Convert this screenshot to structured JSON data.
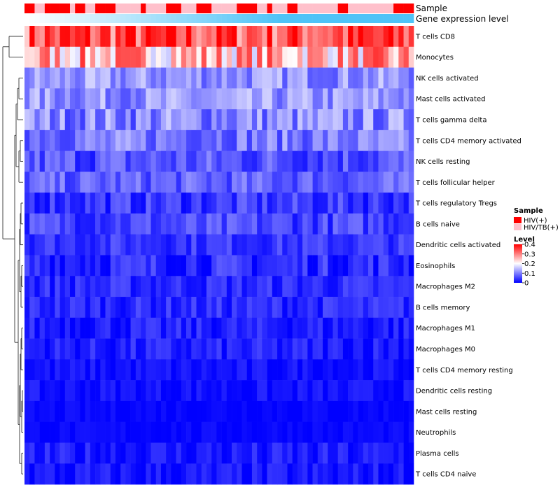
{
  "chart_data": {
    "type": "heatmap",
    "annotation_rows": [
      "Sample",
      "Gene expression level"
    ],
    "rows": [
      "T cells CD8",
      "Monocytes",
      "NK cells activated",
      "Mast cells activated",
      "T cells gamma delta",
      "T cells CD4 memory activated",
      "NK cells resting",
      "T cells follicular helper",
      "T cells regulatory  Tregs",
      "B cells naive",
      "Dendritic cells activated",
      "Eosinophils",
      "Macrophages M2",
      "B cells memory",
      "Macrophages M1",
      "Macrophages M0",
      "T cells CD4 memory resting",
      "Dendritic cells resting",
      "Mast cells resting",
      "Neutrophils",
      "Plasma cells",
      "T cells CD4 naive"
    ],
    "sample_groups": [
      1,
      1,
      0,
      0,
      1,
      1,
      1,
      1,
      1,
      0,
      1,
      1,
      0,
      0,
      1,
      1,
      1,
      1,
      0,
      0,
      0,
      0,
      0,
      1,
      0,
      0,
      0,
      0,
      1,
      1,
      1,
      0,
      0,
      0,
      1,
      1,
      1,
      0,
      0,
      0,
      0,
      0,
      1,
      1,
      1,
      1,
      0,
      0,
      1,
      0,
      0,
      0,
      1,
      1,
      0,
      0,
      0,
      0,
      0,
      0,
      0,
      0,
      1,
      1,
      0,
      0,
      0,
      0,
      0,
      0,
      0,
      0,
      0,
      1,
      1,
      1,
      1
    ],
    "expression_level": [
      0.0,
      0.02,
      0.04,
      0.06,
      0.08,
      0.1,
      0.12,
      0.14,
      0.16,
      0.18,
      0.2,
      0.22,
      0.24,
      0.26,
      0.28,
      0.3,
      0.32,
      0.34,
      0.36,
      0.38,
      0.4,
      0.42,
      0.44,
      0.46,
      0.48,
      0.5,
      0.52,
      0.54,
      0.56,
      0.58,
      0.6,
      0.62,
      0.64,
      0.66,
      0.68,
      0.7,
      0.72,
      0.74,
      0.76,
      0.78,
      0.8,
      0.82,
      0.84,
      0.86,
      0.88,
      0.9,
      0.92,
      0.94,
      0.96,
      0.98,
      1.0,
      1.0,
      1.0,
      1.0,
      1.0,
      1.0,
      1.0,
      1.0,
      1.0,
      1.0,
      1.0,
      1.0,
      1.0,
      1.0,
      1.0,
      1.0,
      1.0,
      1.0,
      1.0,
      1.0,
      1.0,
      1.0,
      1.0,
      1.0,
      1.0,
      1.0,
      1.0
    ],
    "row_means": [
      0.33,
      0.25,
      0.11,
      0.11,
      0.1,
      0.09,
      0.06,
      0.07,
      0.04,
      0.05,
      0.04,
      0.03,
      0.03,
      0.03,
      0.02,
      0.02,
      0.01,
      0.01,
      0.005,
      0.005,
      0.015,
      0.01
    ],
    "row_noise": [
      0.1,
      0.1,
      0.05,
      0.05,
      0.06,
      0.05,
      0.05,
      0.04,
      0.04,
      0.04,
      0.03,
      0.04,
      0.03,
      0.03,
      0.03,
      0.03,
      0.02,
      0.02,
      0.01,
      0.01,
      0.03,
      0.03
    ],
    "legend": {
      "sample_title": "Sample",
      "sample_items": [
        {
          "label": "HIV(+)",
          "color": "#ff0000"
        },
        {
          "label": "HIV/TB(+)",
          "color": "#ffc0cb"
        }
      ],
      "level_title": "Level",
      "level_ticks": [
        {
          "value": 0.4,
          "label": "0.4"
        },
        {
          "value": 0.3,
          "label": "0.3"
        },
        {
          "value": 0.2,
          "label": "0.2"
        },
        {
          "value": 0.1,
          "label": "0.1"
        },
        {
          "value": 0,
          "label": "0"
        }
      ],
      "level_range": [
        0,
        0.4
      ]
    },
    "colors": {
      "low": "#0000ff",
      "mid": "#ffffff",
      "high": "#ff0000",
      "expr_low": "#ffffff",
      "expr_high": "#4fc3f7"
    }
  }
}
